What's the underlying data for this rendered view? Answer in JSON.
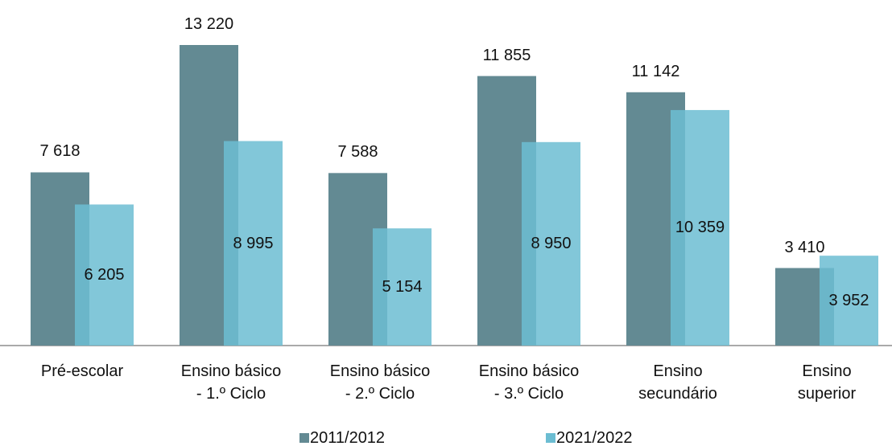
{
  "chart_data": {
    "type": "bar",
    "categories": [
      "Pré-escolar",
      "Ensino básico\n- 1.º Ciclo",
      "Ensino básico\n- 2.º Ciclo",
      "Ensino básico\n- 3.º Ciclo",
      "Ensino\nsecundário",
      "Ensino\nsuperior"
    ],
    "series": [
      {
        "name": "2011/2012",
        "color": "#638a93",
        "values": [
          7618,
          13220,
          7588,
          11855,
          11142,
          3410
        ],
        "value_labels": [
          "7 618",
          "13 220",
          "7 588",
          "11 855",
          "11 142",
          "3 410"
        ]
      },
      {
        "name": "2021/2022",
        "color": "#6cbdd2",
        "values": [
          6205,
          8995,
          5154,
          8950,
          10359,
          3952
        ],
        "value_labels": [
          "6 205",
          "8 995",
          "5 154",
          "8 950",
          "10 359",
          "3 952"
        ]
      }
    ],
    "legend": "bottom"
  }
}
